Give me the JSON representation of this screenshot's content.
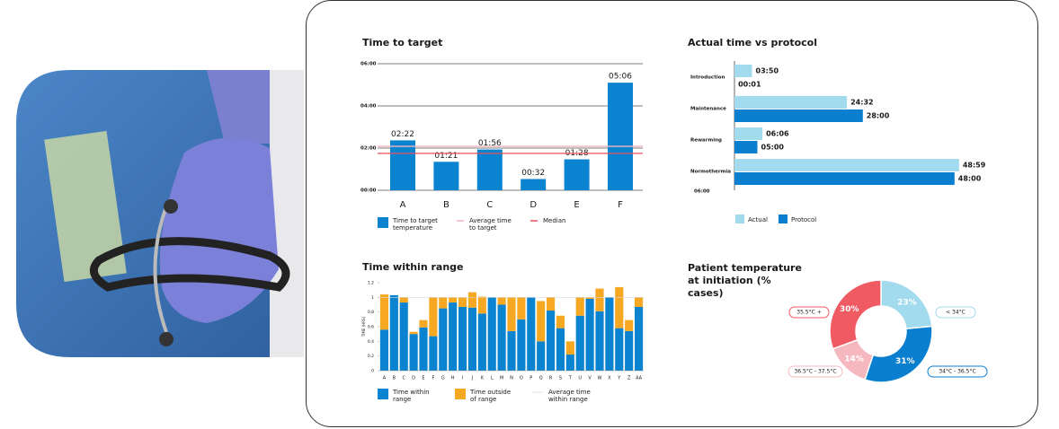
{
  "chart_data": [
    {
      "type": "bar",
      "title": "Time to target",
      "categories": [
        "A",
        "B",
        "C",
        "D",
        "E",
        "F"
      ],
      "series": [
        {
          "name": "Time to target temperature",
          "color": "#0a84d0",
          "values": [
            142,
            81,
            116,
            32,
            88,
            306
          ],
          "value_labels": [
            "02:22",
            "01:21",
            "01:56",
            "00:32",
            "01:28",
            "05:06"
          ]
        }
      ],
      "reference_lines": [
        {
          "name": "Average time to target",
          "color": "#f4b3bd",
          "value": 125
        },
        {
          "name": "Median",
          "color": "#e8505b",
          "value": 105
        }
      ],
      "ylim": [
        0,
        360
      ],
      "yticks": [
        {
          "value": 0,
          "label": "00:00"
        },
        {
          "value": 120,
          "label": "02:00"
        },
        {
          "value": 240,
          "label": "04:00"
        },
        {
          "value": 360,
          "label": "06:00"
        }
      ],
      "grid": true
    },
    {
      "type": "hbar",
      "title": "Actual time vs protocol",
      "categories": [
        "Introduction",
        "Maintenance",
        "Rewarming",
        "Normothermia"
      ],
      "series": [
        {
          "name": "Actual",
          "color": "#a3dbee",
          "values": [
            3.833,
            24.533,
            6.1,
            48.983
          ],
          "value_labels": [
            "03:50",
            "24:32",
            "06:06",
            "48:59"
          ]
        },
        {
          "name": "Protocol",
          "color": "#0a7fd0",
          "values": [
            0.0167,
            28,
            5,
            48
          ],
          "value_labels": [
            "00:01",
            "28:00",
            "05:00",
            "48:00"
          ]
        }
      ],
      "xlim": [
        0,
        50
      ],
      "axis_label": "06:00"
    },
    {
      "type": "stacked_bar",
      "title": "Time within range",
      "y_label": "TIME (HRS)",
      "categories": [
        "A",
        "B",
        "C",
        "D",
        "E",
        "F",
        "G",
        "H",
        "I",
        "J",
        "K",
        "L",
        "M",
        "N",
        "O",
        "P",
        "Q",
        "R",
        "S",
        "T",
        "U",
        "V",
        "W",
        "X",
        "Y",
        "Z",
        "AA"
      ],
      "series": [
        {
          "name": "Time within range",
          "color": "#0a84d0",
          "values": [
            0.56,
            1.03,
            0.93,
            0.5,
            0.59,
            0.47,
            0.85,
            0.93,
            0.87,
            0.86,
            0.78,
            1.0,
            0.9,
            0.54,
            0.7,
            1.0,
            0.4,
            0.82,
            0.58,
            0.22,
            0.75,
            0.98,
            0.81,
            1.0,
            0.58,
            0.54,
            0.87
          ]
        },
        {
          "name": "Time outside of range",
          "color": "#f7a823",
          "values": [
            0.48,
            0,
            0.07,
            0.03,
            0.1,
            0.53,
            0.15,
            0.07,
            0.13,
            0.21,
            0.23,
            0,
            0.1,
            0.46,
            0.3,
            0,
            0.55,
            0.18,
            0.17,
            0.18,
            0.25,
            0.02,
            0.31,
            0,
            0.56,
            0.15,
            0.13
          ]
        }
      ],
      "reference_lines": [
        {
          "name": "Average time within range",
          "color": "#d9d9d9",
          "value": 1.0
        }
      ],
      "ylim": [
        0,
        1.2
      ],
      "yticks": [
        0,
        0.2,
        0.4,
        0.6,
        0.8,
        1,
        1.2
      ]
    },
    {
      "type": "donut",
      "title": "Patient temperature at initiation (% cases)",
      "categories": [
        "< 34°C",
        "34°C - 36.5°C",
        "36.5°C - 37.5°C",
        "35.5°C +"
      ],
      "values": [
        23,
        31,
        14,
        30
      ],
      "value_labels": [
        "23%",
        "31%",
        "14%",
        "30%"
      ],
      "colors": [
        "#a3dbee",
        "#0a7fd0",
        "#f6b8bf",
        "#ef5a63"
      ]
    }
  ]
}
